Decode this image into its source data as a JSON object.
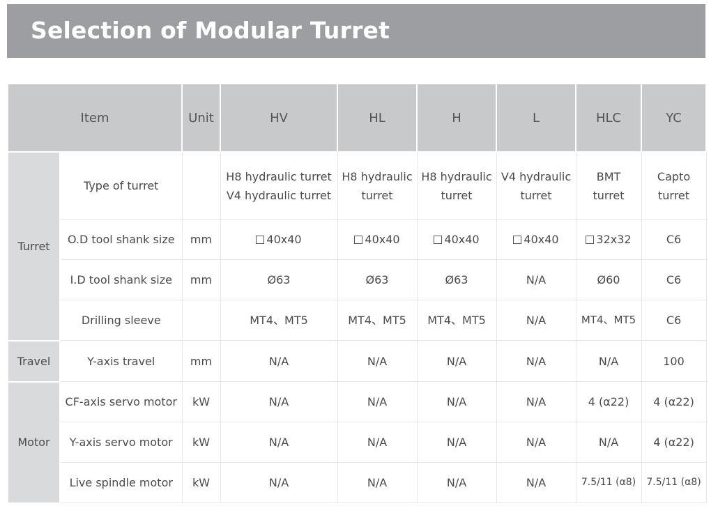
{
  "title": "Selection of Modular Turret",
  "headers": {
    "item": "Item",
    "unit": "Unit",
    "models": [
      "HV",
      "HL",
      "H",
      "L",
      "HLC",
      "YC"
    ]
  },
  "groups": {
    "turret": "Turret",
    "travel": "Travel",
    "motor": "Motor"
  },
  "rows": [
    {
      "item": "Type of turret",
      "unit": "",
      "values": [
        "H8 hydraulic turret\nV4 hydraulic turret",
        "H8 hydraulic\nturret",
        "H8 hydraulic\nturret",
        "V4 hydraulic\nturret",
        "BMT\nturret",
        "Capto\nturret"
      ]
    },
    {
      "item": "O.D tool shank size",
      "unit": "mm",
      "values": [
        "40x40",
        "40x40",
        "40x40",
        "40x40",
        "32x32",
        "C6"
      ]
    },
    {
      "item": "I.D tool shank size",
      "unit": "mm",
      "values": [
        "Ø63",
        "Ø63",
        "Ø63",
        "N/A",
        "Ø60",
        "C6"
      ]
    },
    {
      "item": "Drilling sleeve",
      "unit": "",
      "values": [
        "MT4、MT5",
        "MT4、MT5",
        "MT4、MT5",
        "N/A",
        "MT4、MT5",
        "C6"
      ]
    },
    {
      "item": "Y-axis travel",
      "unit": "mm",
      "values": [
        "N/A",
        "N/A",
        "N/A",
        "N/A",
        "N/A",
        "100"
      ]
    },
    {
      "item": "CF-axis servo motor",
      "unit": "kW",
      "values": [
        "N/A",
        "N/A",
        "N/A",
        "N/A",
        "4 (α22)",
        "4 (α22)"
      ]
    },
    {
      "item": "Y-axis servo motor",
      "unit": "kW",
      "values": [
        "N/A",
        "N/A",
        "N/A",
        "N/A",
        "N/A",
        "4 (α22)"
      ]
    },
    {
      "item": "Live spindle motor",
      "unit": "kW",
      "values": [
        "N/A",
        "N/A",
        "N/A",
        "N/A",
        "7.5/11 (α8)",
        "7.5/11 (α8)"
      ]
    }
  ]
}
